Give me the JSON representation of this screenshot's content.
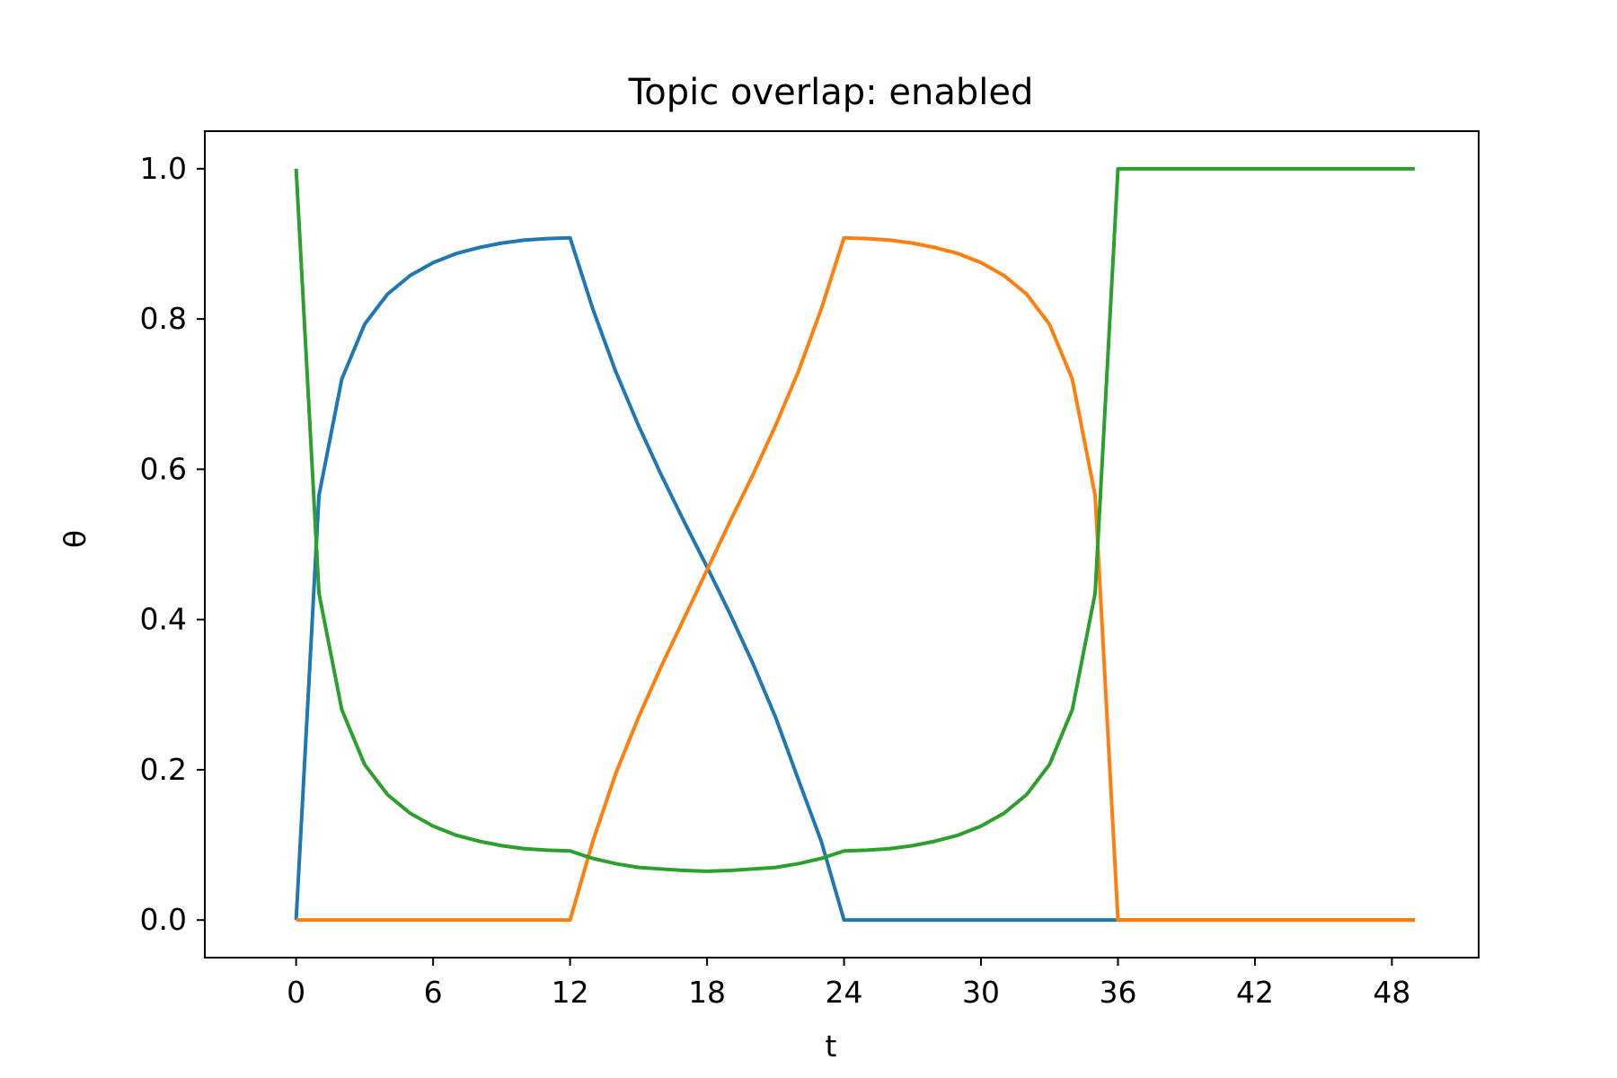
{
  "chart_data": {
    "type": "line",
    "title": "Topic overlap: enabled",
    "xlabel": "t",
    "ylabel": "θ",
    "xlim": [
      -4,
      51.8
    ],
    "ylim": [
      -0.05,
      1.05
    ],
    "xticks": [
      0,
      6,
      12,
      18,
      24,
      30,
      36,
      42,
      48
    ],
    "yticks": [
      0.0,
      0.2,
      0.4,
      0.6,
      0.8,
      1.0
    ],
    "xtick_labels": [
      "0",
      "6",
      "12",
      "18",
      "24",
      "30",
      "36",
      "42",
      "48"
    ],
    "ytick_labels": [
      "0.0",
      "0.2",
      "0.4",
      "0.6",
      "0.8",
      "1.0"
    ],
    "grid": false,
    "legend": "none",
    "colors": [
      "#1f77b4",
      "#ff7f0e",
      "#2ca02c"
    ],
    "series": [
      {
        "color": "#1f77b4",
        "points": [
          [
            0,
            0.0
          ],
          [
            1,
            0.565
          ],
          [
            2,
            0.72
          ],
          [
            3,
            0.793
          ],
          [
            4,
            0.833
          ],
          [
            5,
            0.858
          ],
          [
            6,
            0.875
          ],
          [
            7,
            0.887
          ],
          [
            8,
            0.895
          ],
          [
            9,
            0.901
          ],
          [
            10,
            0.905
          ],
          [
            11,
            0.907
          ],
          [
            12,
            0.908
          ],
          [
            13,
            0.813
          ],
          [
            14,
            0.73
          ],
          [
            15,
            0.658
          ],
          [
            16,
            0.592
          ],
          [
            17,
            0.53
          ],
          [
            18,
            0.47
          ],
          [
            19,
            0.408
          ],
          [
            20,
            0.342
          ],
          [
            21,
            0.27
          ],
          [
            22,
            0.187
          ],
          [
            23,
            0.105
          ],
          [
            24,
            0.0
          ],
          [
            25,
            0.0
          ],
          [
            26,
            0.0
          ],
          [
            27,
            0.0
          ],
          [
            28,
            0.0
          ],
          [
            29,
            0.0
          ],
          [
            30,
            0.0
          ],
          [
            31,
            0.0
          ],
          [
            32,
            0.0
          ],
          [
            33,
            0.0
          ],
          [
            34,
            0.0
          ],
          [
            35,
            0.0
          ],
          [
            36,
            0.0
          ],
          [
            37,
            0.0
          ],
          [
            38,
            0.0
          ],
          [
            39,
            0.0
          ],
          [
            40,
            0.0
          ],
          [
            41,
            0.0
          ],
          [
            42,
            0.0
          ],
          [
            43,
            0.0
          ],
          [
            44,
            0.0
          ],
          [
            45,
            0.0
          ],
          [
            46,
            0.0
          ],
          [
            47,
            0.0
          ],
          [
            48,
            0.0
          ],
          [
            49,
            0.0
          ]
        ]
      },
      {
        "color": "#ff7f0e",
        "points": [
          [
            0,
            0.0
          ],
          [
            1,
            0.0
          ],
          [
            2,
            0.0
          ],
          [
            3,
            0.0
          ],
          [
            4,
            0.0
          ],
          [
            5,
            0.0
          ],
          [
            6,
            0.0
          ],
          [
            7,
            0.0
          ],
          [
            8,
            0.0
          ],
          [
            9,
            0.0
          ],
          [
            10,
            0.0
          ],
          [
            11,
            0.0
          ],
          [
            12,
            0.0
          ],
          [
            13,
            0.105
          ],
          [
            14,
            0.195
          ],
          [
            15,
            0.27
          ],
          [
            16,
            0.338
          ],
          [
            17,
            0.402
          ],
          [
            18,
            0.466
          ],
          [
            19,
            0.53
          ],
          [
            20,
            0.592
          ],
          [
            21,
            0.658
          ],
          [
            22,
            0.73
          ],
          [
            23,
            0.813
          ],
          [
            24,
            0.908
          ],
          [
            25,
            0.907
          ],
          [
            26,
            0.905
          ],
          [
            27,
            0.901
          ],
          [
            28,
            0.895
          ],
          [
            29,
            0.887
          ],
          [
            30,
            0.875
          ],
          [
            31,
            0.858
          ],
          [
            32,
            0.833
          ],
          [
            33,
            0.793
          ],
          [
            34,
            0.72
          ],
          [
            35,
            0.565
          ],
          [
            36,
            0.0
          ],
          [
            37,
            0.0
          ],
          [
            38,
            0.0
          ],
          [
            39,
            0.0
          ],
          [
            40,
            0.0
          ],
          [
            41,
            0.0
          ],
          [
            42,
            0.0
          ],
          [
            43,
            0.0
          ],
          [
            44,
            0.0
          ],
          [
            45,
            0.0
          ],
          [
            46,
            0.0
          ],
          [
            47,
            0.0
          ],
          [
            48,
            0.0
          ],
          [
            49,
            0.0
          ]
        ]
      },
      {
        "color": "#2ca02c",
        "points": [
          [
            0,
            1.0
          ],
          [
            1,
            0.435
          ],
          [
            2,
            0.28
          ],
          [
            3,
            0.207
          ],
          [
            4,
            0.167
          ],
          [
            5,
            0.142
          ],
          [
            6,
            0.125
          ],
          [
            7,
            0.113
          ],
          [
            8,
            0.105
          ],
          [
            9,
            0.099
          ],
          [
            10,
            0.095
          ],
          [
            11,
            0.093
          ],
          [
            12,
            0.092
          ],
          [
            13,
            0.082
          ],
          [
            14,
            0.075
          ],
          [
            15,
            0.07
          ],
          [
            16,
            0.068
          ],
          [
            17,
            0.066
          ],
          [
            18,
            0.065
          ],
          [
            19,
            0.066
          ],
          [
            20,
            0.068
          ],
          [
            21,
            0.07
          ],
          [
            22,
            0.075
          ],
          [
            23,
            0.082
          ],
          [
            24,
            0.092
          ],
          [
            25,
            0.093
          ],
          [
            26,
            0.095
          ],
          [
            27,
            0.099
          ],
          [
            28,
            0.105
          ],
          [
            29,
            0.113
          ],
          [
            30,
            0.125
          ],
          [
            31,
            0.142
          ],
          [
            32,
            0.167
          ],
          [
            33,
            0.207
          ],
          [
            34,
            0.28
          ],
          [
            35,
            0.435
          ],
          [
            36,
            1.0
          ],
          [
            37,
            1.0
          ],
          [
            38,
            1.0
          ],
          [
            39,
            1.0
          ],
          [
            40,
            1.0
          ],
          [
            41,
            1.0
          ],
          [
            42,
            1.0
          ],
          [
            43,
            1.0
          ],
          [
            44,
            1.0
          ],
          [
            45,
            1.0
          ],
          [
            46,
            1.0
          ],
          [
            47,
            1.0
          ],
          [
            48,
            1.0
          ],
          [
            49,
            1.0
          ]
        ]
      }
    ]
  }
}
